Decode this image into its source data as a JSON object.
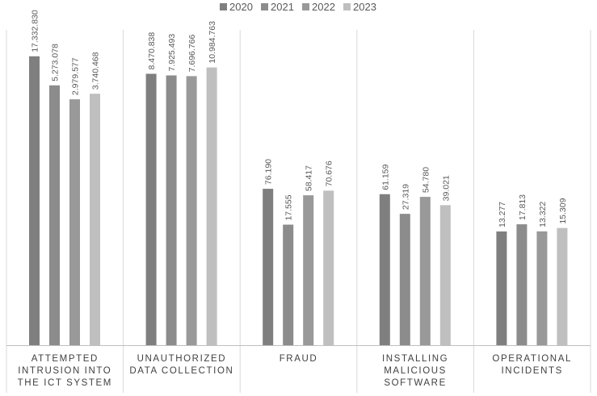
{
  "chart_data": {
    "type": "bar",
    "y_scale": "log",
    "title": "",
    "xlabel": "",
    "ylabel": "",
    "legend_position": "top",
    "grid": false,
    "categories": [
      [
        "ATTEMPTED",
        "INTRUSION INTO",
        "THE ICT SYSTEM"
      ],
      [
        "UNAUTHORIZED",
        "DATA COLLECTION"
      ],
      [
        "FRAUD"
      ],
      [
        "INSTALLING",
        "MALICIOUS",
        "SOFTWARE"
      ],
      [
        "OPERATIONAL",
        "INCIDENTS"
      ]
    ],
    "series": [
      {
        "name": "2020",
        "color": "#7f7f7f",
        "values": [
          17332830,
          8470838,
          76190,
          61159,
          13277
        ],
        "labels": [
          "17.332.830",
          "8.470.838",
          "76.190",
          "61.159",
          "13.277"
        ]
      },
      {
        "name": "2021",
        "color": "#8c8c8c",
        "values": [
          5273078,
          7925493,
          17555,
          27319,
          17813
        ],
        "labels": [
          "5.273.078",
          "7.925.493",
          "17.555",
          "27.319",
          "17.813"
        ]
      },
      {
        "name": "2022",
        "color": "#999999",
        "values": [
          2979577,
          7696766,
          58417,
          54780,
          13322
        ],
        "labels": [
          "2.979.577",
          "7.696.766",
          "58.417",
          "54.780",
          "13.322"
        ]
      },
      {
        "name": "2023",
        "color": "#bfbfbf",
        "values": [
          3740468,
          10984763,
          70676,
          39021,
          15309
        ],
        "labels": [
          "3.740.468",
          "10.984.763",
          "70.676",
          "39.021",
          "15.309"
        ]
      }
    ]
  }
}
